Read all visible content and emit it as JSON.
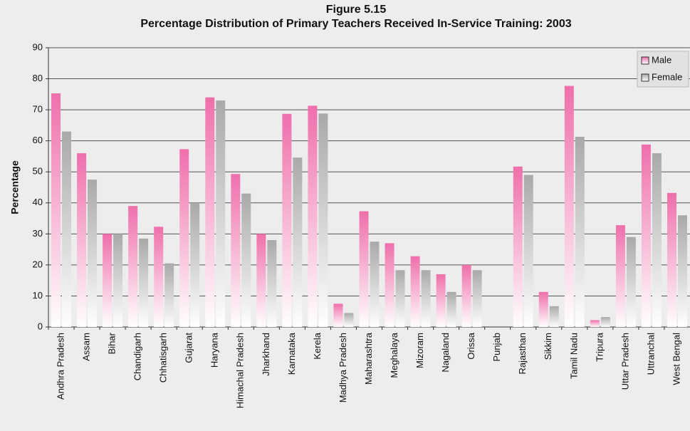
{
  "chart_data": {
    "type": "bar",
    "title": "Figure 5.15",
    "subtitle": "Percentage Distribution of Primary Teachers Received In-Service Training: 2003",
    "y_label": "Percentage",
    "categories": [
      "Andhra Pradesh",
      "Assam",
      "Bihar",
      "Chandigarh",
      "Chhatisgarh",
      "Gujarat",
      "Haryana",
      "Himachal Pradesh",
      "Jharkhand",
      "Karnataka",
      "Kerela",
      "Madhya Pradesh",
      "Maharashtra",
      "Meghalaya",
      "Mizoram",
      "Nagaland",
      "Orissa",
      "Punjab",
      "Rajasthan",
      "Sikkim",
      "Tamil Nadu",
      "Tripura",
      "Uttar Pradesh",
      "Uttranchal",
      "West Bengal"
    ],
    "series": [
      {
        "name": "Male",
        "color": "#ef6fab",
        "values": [
          75.3,
          56,
          30,
          39,
          32.3,
          57.3,
          74,
          49.3,
          30,
          68.7,
          71.3,
          7.5,
          37.3,
          27,
          22.8,
          17,
          20,
          0,
          51.7,
          11.3,
          77.7,
          2.2,
          32.8,
          58.8,
          43.2
        ]
      },
      {
        "name": "Female",
        "color": "#a9a9a9",
        "values": [
          63,
          47.5,
          30,
          28.5,
          20.5,
          40,
          73,
          43,
          28,
          54.6,
          68.8,
          4.5,
          27.5,
          18.3,
          18.3,
          11.3,
          18.3,
          0,
          49,
          6.7,
          61.3,
          3.2,
          29,
          56,
          36
        ]
      }
    ],
    "ylim": [
      0,
      90
    ],
    "yticks": [
      0,
      10,
      20,
      30,
      40,
      50,
      60,
      70,
      80,
      90
    ],
    "grid": true,
    "legend": "top-right"
  }
}
